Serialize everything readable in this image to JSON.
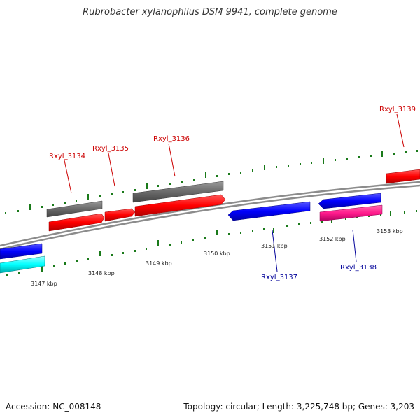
{
  "title": "Rubrobacter xylanophilus DSM 9941, complete genome",
  "footer": {
    "accession": "Accession: NC_008148",
    "summary": "Topology: circular; Length: 3,225,748 bp; Genes: 3,203"
  },
  "kbp_labels": [
    "3147 kbp",
    "3148 kbp",
    "3149 kbp",
    "3150 kbp",
    "3151 kbp",
    "3152 kbp",
    "3153 kbp"
  ],
  "genes": {
    "Rxyl_3134": "Rxyl_3134",
    "Rxyl_3135": "Rxyl_3135",
    "Rxyl_3136": "Rxyl_3136",
    "Rxyl_3137": "Rxyl_3137",
    "Rxyl_3138": "Rxyl_3138",
    "Rxyl_3139": "Rxyl_3139"
  },
  "colors": {
    "forward_label": "#cc0000",
    "reverse_label": "#000099",
    "red_gene": "#ff1a1a",
    "blue_gene": "#1a1aff",
    "gray_gene": "#6e6e6e",
    "cyan_gene": "#00ffff",
    "pink_gene": "#ff1a8c",
    "tick": "#1a7a1a",
    "backbone": "#8c8c8c"
  }
}
